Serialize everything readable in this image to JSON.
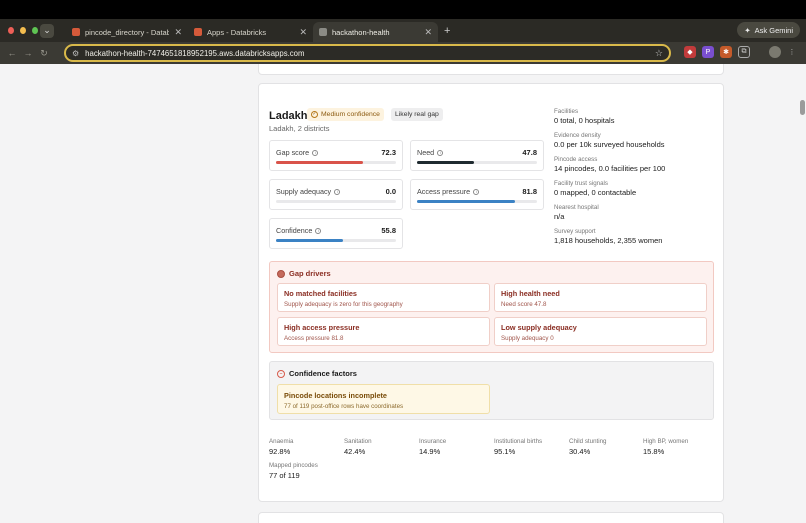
{
  "browser": {
    "tabs": [
      {
        "title": "pincode_directory - Databricks",
        "active": false
      },
      {
        "title": "Apps - Databricks",
        "active": false
      },
      {
        "title": "hackathon-health",
        "active": true
      }
    ],
    "new_tab": "+",
    "ask_gemini": "Ask Gemini",
    "url": "hackathon-health-7474651818952195.aws.databricksapps.com"
  },
  "region": {
    "title": "Ladakh",
    "confidence_badge": "Medium confidence",
    "gap_badge": "Likely real gap",
    "subtitle": "Ladakh, 2 districts"
  },
  "metrics": [
    {
      "label": "Gap score",
      "value": "72.3",
      "fraction": 0.723,
      "color": "#d9534a"
    },
    {
      "label": "Need",
      "value": "47.8",
      "fraction": 0.478,
      "color": "#1f2a30"
    },
    {
      "label": "Supply adequacy",
      "value": "0.0",
      "fraction": 0.0,
      "color": "#3b82c4"
    },
    {
      "label": "Access pressure",
      "value": "81.8",
      "fraction": 0.818,
      "color": "#3b82c4"
    },
    {
      "label": "Confidence",
      "value": "55.8",
      "fraction": 0.558,
      "color": "#3b82c4"
    }
  ],
  "facts": [
    {
      "label": "Facilities",
      "value": "0 total, 0 hospitals"
    },
    {
      "label": "Evidence density",
      "value": "0.0 per 10k surveyed households"
    },
    {
      "label": "Pincode access",
      "value": "14 pincodes, 0.0 facilities per 100"
    },
    {
      "label": "Facility trust signals",
      "value": "0 mapped, 0 contactable"
    },
    {
      "label": "Nearest hospital",
      "value": "n/a"
    },
    {
      "label": "Survey support",
      "value": "1,818 households, 2,355 women"
    }
  ],
  "gap_drivers": {
    "heading": "Gap drivers",
    "items": [
      {
        "title": "No matched facilities",
        "desc": "Supply adequacy is zero for this geography"
      },
      {
        "title": "High health need",
        "desc": "Need score 47.8"
      },
      {
        "title": "High access pressure",
        "desc": "Access pressure 81.8"
      },
      {
        "title": "Low supply adequacy",
        "desc": "Supply adequacy 0"
      }
    ]
  },
  "confidence_factors": {
    "heading": "Confidence factors",
    "items": [
      {
        "title": "Pincode locations incomplete",
        "desc": "77 of 119 post-office rows have coordinates"
      }
    ]
  },
  "stats": [
    {
      "label": "Anaemia",
      "value": "92.8%"
    },
    {
      "label": "Sanitation",
      "value": "42.4%"
    },
    {
      "label": "Insurance",
      "value": "14.9%"
    },
    {
      "label": "Institutional births",
      "value": "95.1%"
    },
    {
      "label": "Child stunting",
      "value": "30.4%"
    },
    {
      "label": "High BP, women",
      "value": "15.8%"
    },
    {
      "label": "Mapped pincodes",
      "value": "77 of 119"
    }
  ]
}
